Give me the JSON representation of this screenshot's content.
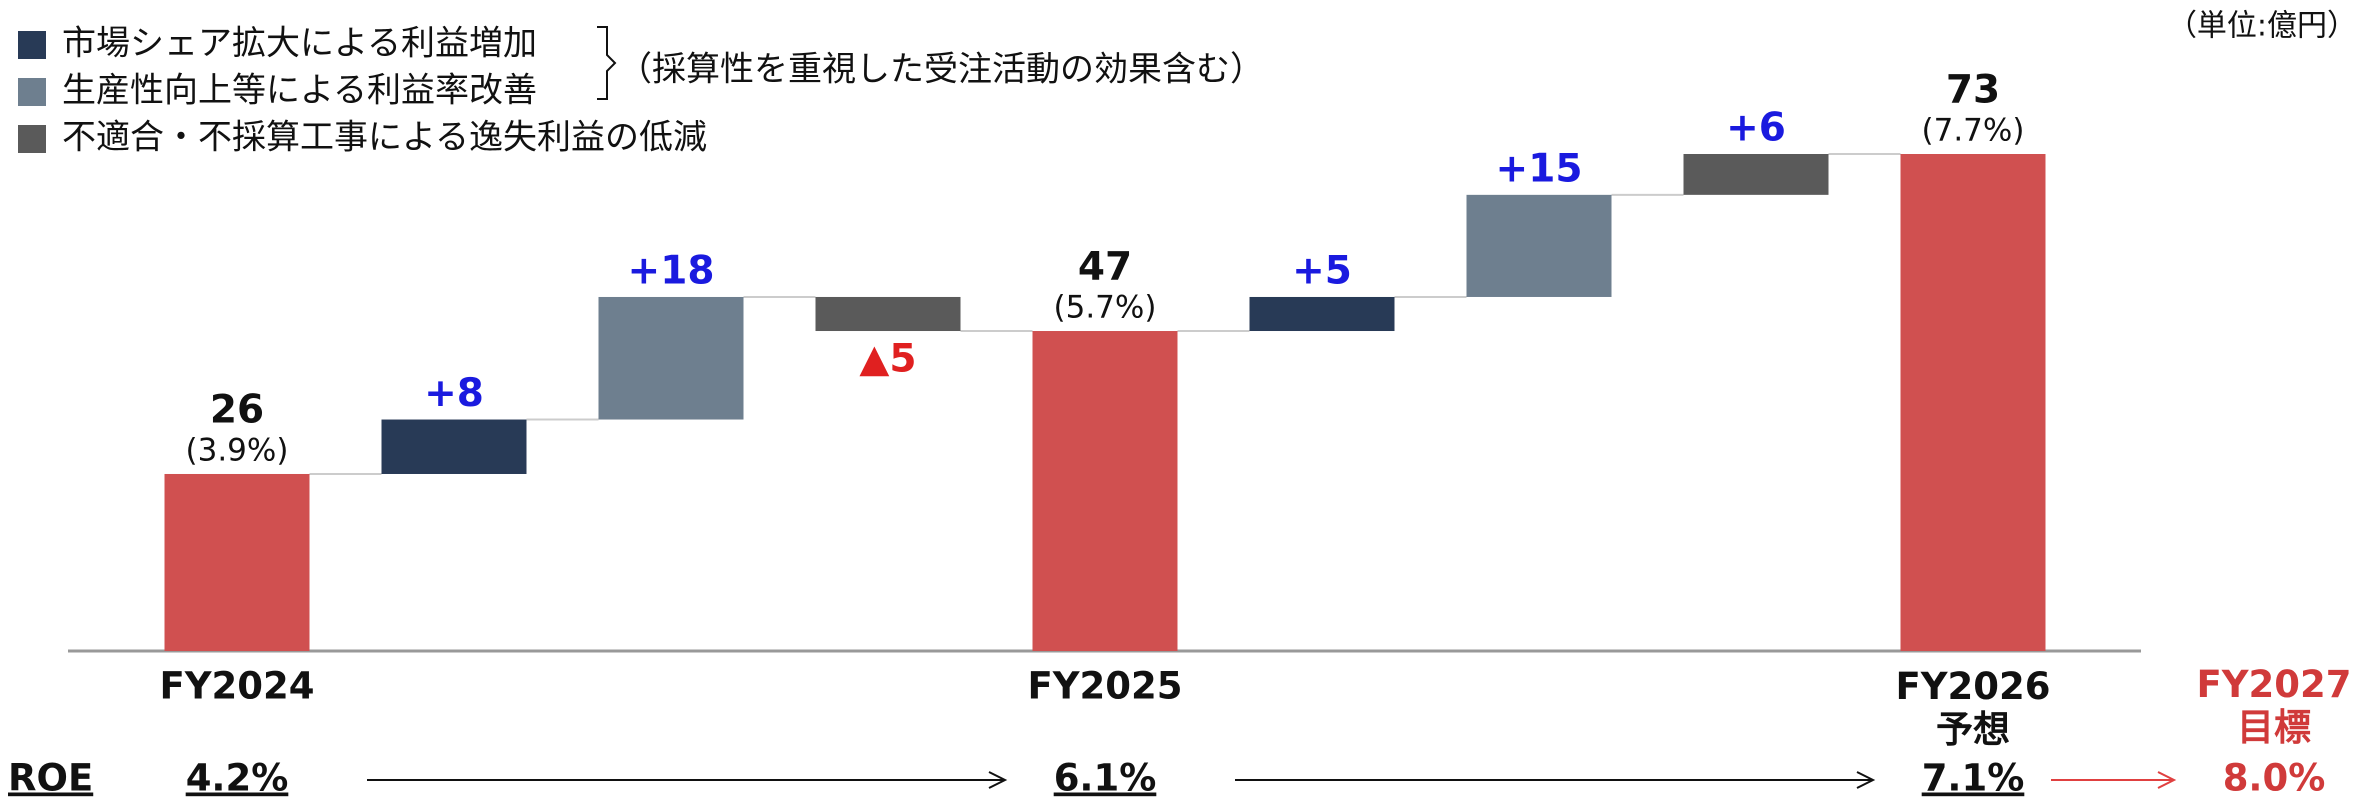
{
  "chart_data": {
    "type": "waterfall",
    "unit": "（単位:億円）",
    "note": "（採算性を重視した受注活動の効果含む）",
    "categories": [
      "FY2024",
      null,
      null,
      null,
      "FY2025",
      null,
      null,
      null,
      "FY2026\n予想"
    ],
    "totals": [
      26,
      null,
      null,
      null,
      47,
      null,
      null,
      null,
      73
    ],
    "total_labels": [
      "(3.9%)",
      null,
      null,
      null,
      "(5.7%)",
      null,
      null,
      null,
      "(7.7%)"
    ],
    "total_color": "#d05050",
    "series": [
      {
        "name": "市場シェア拡大による利益増加",
        "color": "#283a56",
        "values": [
          null,
          8,
          null,
          null,
          null,
          5,
          null,
          null,
          null
        ],
        "value_labels": [
          null,
          "+8",
          null,
          null,
          null,
          "+5",
          null,
          null,
          null
        ]
      },
      {
        "name": "生産性向上等による利益率改善",
        "color": "#6e7f8f",
        "values": [
          null,
          null,
          18,
          null,
          null,
          null,
          15,
          null,
          null
        ],
        "value_labels": [
          null,
          null,
          "+18",
          null,
          null,
          null,
          "+15",
          null,
          null
        ]
      },
      {
        "name": "不適合・不採算工事による逸失利益の低減",
        "color": "#5a5a5a",
        "values": [
          null,
          null,
          null,
          -5,
          null,
          null,
          null,
          6,
          null
        ],
        "value_labels": [
          null,
          null,
          null,
          "▲5",
          null,
          null,
          null,
          "+6",
          null
        ]
      }
    ],
    "roe": {
      "label": "ROE",
      "values": [
        "4.2%",
        null,
        null,
        null,
        "6.1%",
        null,
        null,
        null,
        "7.1%"
      ]
    },
    "target": {
      "category": "FY2027\n目標",
      "roe": "8.0%"
    }
  }
}
